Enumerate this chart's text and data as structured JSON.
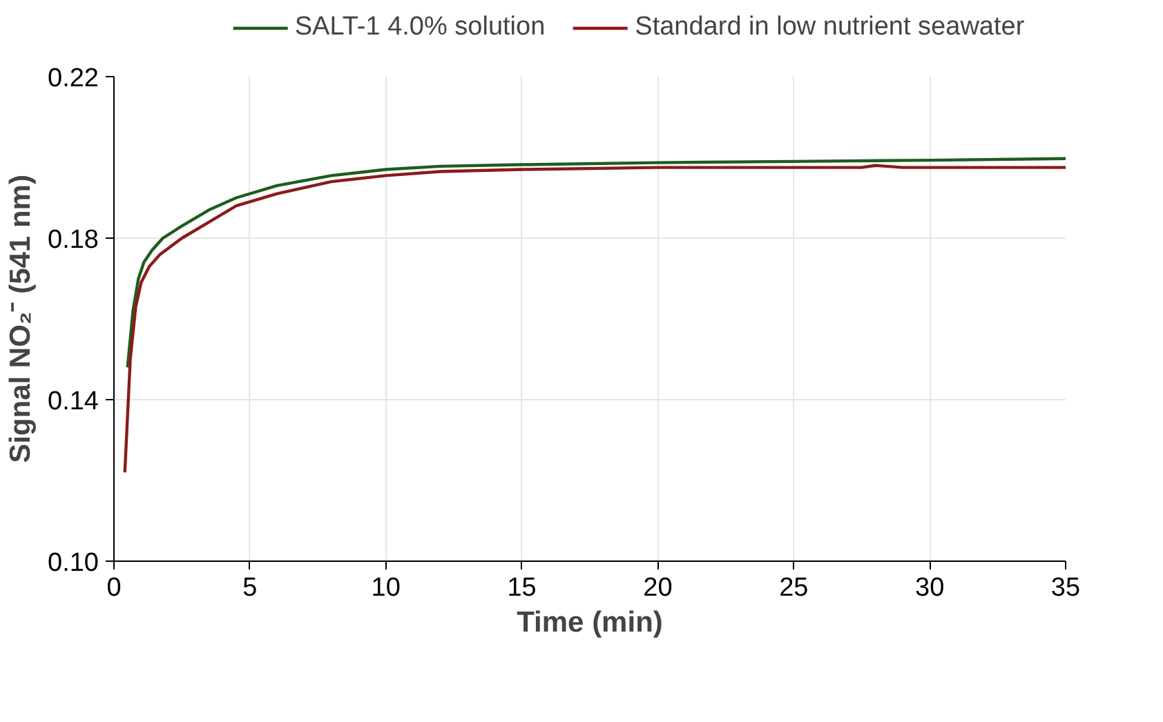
{
  "chart_data": {
    "type": "line",
    "xlabel": "Time (min)",
    "ylabel": "Signal NO₂⁻ (541 nm)",
    "xlim": [
      0,
      35
    ],
    "xticks": [
      0,
      5,
      10,
      15,
      20,
      25,
      30,
      35
    ],
    "ylim": [
      0.1,
      0.22
    ],
    "yticks": [
      {
        "value": 0.1,
        "label": "0.10"
      },
      0.14,
      0.18,
      0.22
    ],
    "grid": true,
    "legend": "top",
    "marker": "none",
    "line_style": "solid",
    "series": [
      {
        "name": "SALT-1 4.0% solution",
        "color": "#1e5c1e",
        "x": [
          0.5,
          0.7,
          0.9,
          1.1,
          1.4,
          1.8,
          2.5,
          3.5,
          4.5,
          6,
          8,
          10,
          12,
          15,
          20,
          25,
          30,
          35
        ],
        "values": [
          0.148,
          0.162,
          0.17,
          0.174,
          0.177,
          0.18,
          0.183,
          0.187,
          0.19,
          0.193,
          0.1955,
          0.197,
          0.1978,
          0.1982,
          0.1987,
          0.199,
          0.1993,
          0.1997
        ]
      },
      {
        "name": "Standard in low nutrient seawater",
        "color": "#8b1a1a",
        "x": [
          0.4,
          0.6,
          0.8,
          1.0,
          1.3,
          1.7,
          2.5,
          3.5,
          4.5,
          6,
          8,
          10,
          12,
          15,
          20,
          25,
          27.5,
          28,
          29,
          35
        ],
        "values": [
          0.122,
          0.15,
          0.163,
          0.169,
          0.173,
          0.176,
          0.18,
          0.184,
          0.188,
          0.191,
          0.194,
          0.1955,
          0.1965,
          0.197,
          0.1975,
          0.1975,
          0.1975,
          0.198,
          0.1975,
          0.1975
        ]
      }
    ]
  }
}
